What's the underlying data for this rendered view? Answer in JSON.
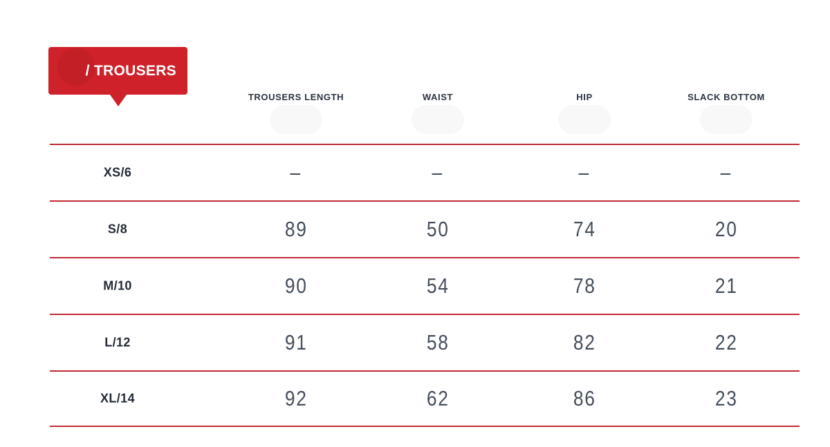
{
  "badge": {
    "label": "/ TROUSERS"
  },
  "columns": [
    "TROUSERS LENGTH",
    "WAIST",
    "HIP",
    "SLACK BOTTOM"
  ],
  "table": {
    "rows": [
      {
        "size": "XS/6",
        "values": [
          "–",
          "–",
          "–",
          "–"
        ]
      },
      {
        "size": "S/8",
        "values": [
          "89",
          "50",
          "74",
          "20"
        ]
      },
      {
        "size": "M/10",
        "values": [
          "90",
          "54",
          "78",
          "21"
        ]
      },
      {
        "size": "L/12",
        "values": [
          "91",
          "58",
          "82",
          "22"
        ]
      },
      {
        "size": "XL/14",
        "values": [
          "92",
          "62",
          "86",
          "23"
        ]
      }
    ]
  },
  "colors": {
    "badge_red": "#cf2129",
    "line_red": "#c12a33",
    "header_text": "#2b3342",
    "row_label_text": "#242b38",
    "value_text": "#454e5c"
  }
}
